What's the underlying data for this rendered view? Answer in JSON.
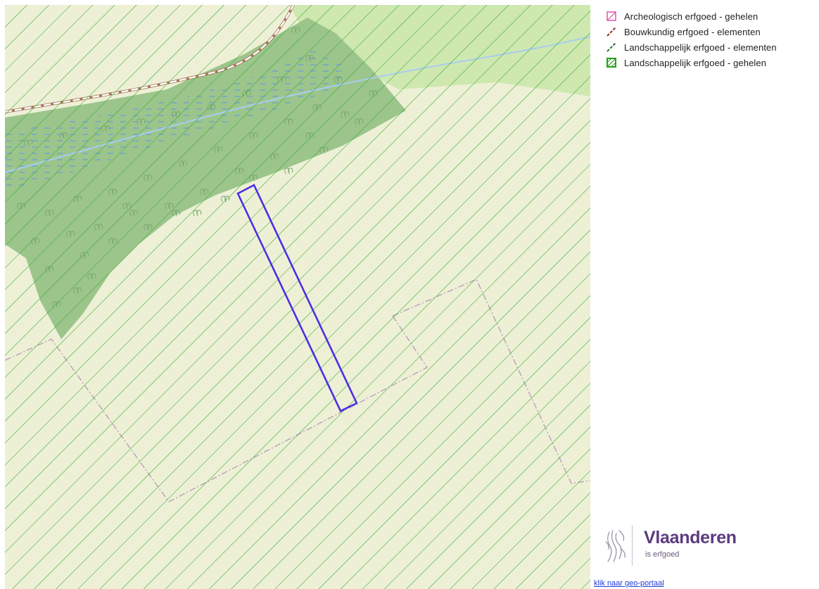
{
  "map": {
    "base_colors": {
      "land": "#eef0d6",
      "forest": "#9cc58c",
      "meadow": "#cfe8b0",
      "water_line": "#a9cdee",
      "marsh_dash": "#5b8ff0",
      "hatch": "#36ae2f",
      "selection": "#4b2fe6",
      "parcel_boundary": "#b3a3b7",
      "road_outline": "#a4775a"
    },
    "icons": {
      "forest_symbol": "tree-icon"
    }
  },
  "legend": {
    "items": [
      {
        "label": "Archeologisch erfgoed - gehelen",
        "icon": "pink-hatched-square-icon",
        "color": "#e24aa3"
      },
      {
        "label": "Bouwkundig erfgoed - elementen",
        "icon": "brown-dashed-line-icon",
        "color": "#8a2d1d"
      },
      {
        "label": "Landschappelijk erfgoed - elementen",
        "icon": "green-dashed-line-icon",
        "color": "#2a6a2a"
      },
      {
        "label": "Landschappelijk erfgoed - gehelen",
        "icon": "green-hatched-square-icon",
        "color": "#36ae2f"
      }
    ]
  },
  "logo": {
    "title": "Vlaanderen",
    "subtitle": "is erfgoed",
    "color": "#5c3b80"
  },
  "footer": {
    "portal_link": "klik naar geo-portaal"
  }
}
